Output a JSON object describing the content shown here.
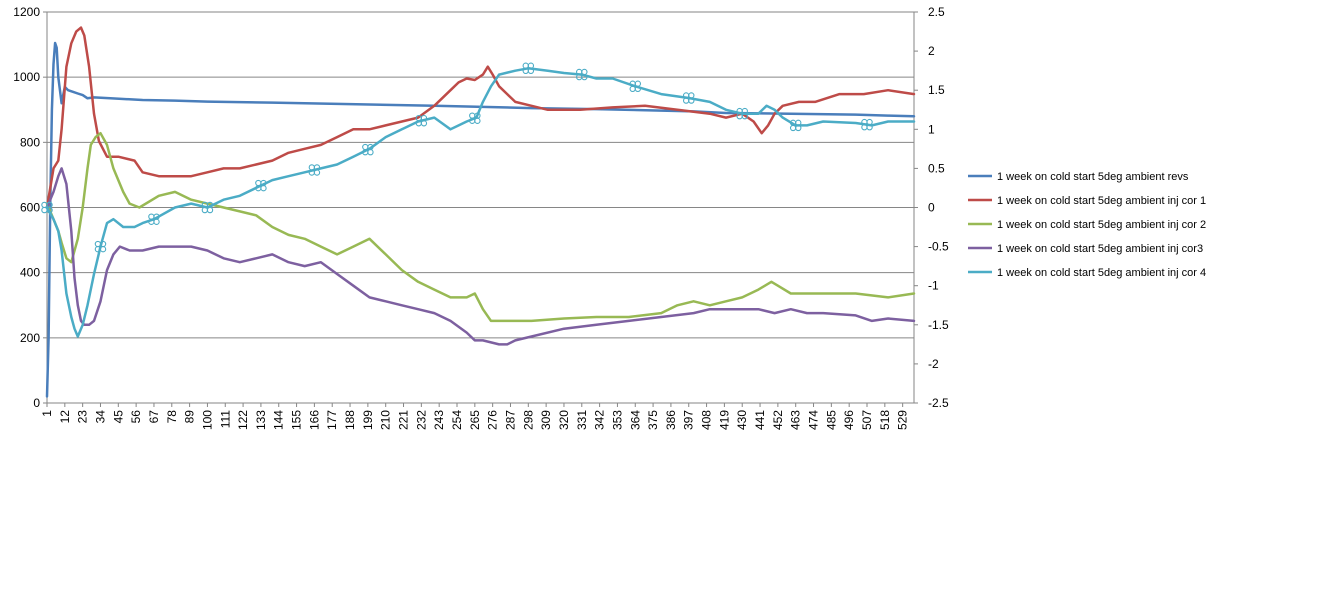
{
  "chart_data": {
    "type": "line",
    "title": "",
    "xlabel": "",
    "ylabel": "",
    "y2label": "",
    "grid": true,
    "legend_position": "right",
    "ylim": [
      0,
      1200
    ],
    "y_ticks": [
      "0",
      "200",
      "400",
      "600",
      "800",
      "1000",
      "1200"
    ],
    "y2lim": [
      -2.5,
      2.5
    ],
    "y2_ticks": [
      "-2.5",
      "-2",
      "-1.5",
      "-1",
      "-0.5",
      "0",
      "0.5",
      "1",
      "1.5",
      "2",
      "2.5"
    ],
    "xlim": [
      1,
      536
    ],
    "x_ticks": [
      "1",
      "12",
      "23",
      "34",
      "45",
      "56",
      "67",
      "78",
      "89",
      "100",
      "111",
      "122",
      "133",
      "144",
      "155",
      "166",
      "177",
      "188",
      "199",
      "210",
      "221",
      "232",
      "243",
      "254",
      "265",
      "276",
      "287",
      "298",
      "309",
      "320",
      "331",
      "342",
      "353",
      "364",
      "375",
      "386",
      "397",
      "408",
      "419",
      "430",
      "441",
      "452",
      "463",
      "474",
      "485",
      "496",
      "507",
      "518",
      "529"
    ],
    "series": [
      {
        "name": "1 week on  cold start  5deg ambient  revs",
        "axis": "left",
        "color": "#4a7ebb",
        "markers": false,
        "x": [
          1,
          2,
          3,
          4,
          5,
          6,
          7,
          8,
          10,
          12,
          14,
          17,
          20,
          23,
          26,
          30,
          40,
          60,
          80,
          100,
          140,
          180,
          240,
          260,
          300,
          340,
          400,
          420,
          460,
          500,
          520,
          536
        ],
        "y": [
          20,
          200,
          600,
          900,
          1040,
          1105,
          1090,
          1000,
          920,
          970,
          960,
          955,
          950,
          945,
          935,
          938,
          935,
          930,
          928,
          925,
          922,
          918,
          912,
          910,
          905,
          902,
          895,
          890,
          888,
          885,
          882,
          880
        ]
      },
      {
        "name": "1 week on  cold start  5deg ambient  inj cor 1",
        "axis": "right",
        "color": "#be4b48",
        "markers": false,
        "x": [
          1,
          5,
          8,
          10,
          13,
          16,
          19,
          22,
          24,
          27,
          30,
          33,
          38,
          45,
          55,
          60,
          70,
          80,
          90,
          100,
          110,
          120,
          130,
          140,
          150,
          160,
          170,
          180,
          190,
          200,
          210,
          220,
          230,
          240,
          250,
          255,
          260,
          265,
          270,
          273,
          276,
          280,
          285,
          290,
          300,
          310,
          330,
          350,
          370,
          390,
          410,
          420,
          430,
          437,
          442,
          446,
          450,
          455,
          465,
          475,
          490,
          505,
          520,
          536
        ],
        "y": [
          0,
          0.5,
          0.6,
          1.0,
          1.8,
          2.1,
          2.25,
          2.3,
          2.2,
          1.8,
          1.2,
          0.85,
          0.65,
          0.65,
          0.6,
          0.45,
          0.4,
          0.4,
          0.4,
          0.45,
          0.5,
          0.5,
          0.55,
          0.6,
          0.7,
          0.75,
          0.8,
          0.9,
          1.0,
          1.0,
          1.05,
          1.1,
          1.15,
          1.3,
          1.5,
          1.6,
          1.65,
          1.63,
          1.7,
          1.8,
          1.7,
          1.55,
          1.45,
          1.35,
          1.3,
          1.25,
          1.25,
          1.28,
          1.3,
          1.25,
          1.2,
          1.15,
          1.2,
          1.1,
          0.95,
          1.05,
          1.2,
          1.3,
          1.35,
          1.35,
          1.45,
          1.45,
          1.5,
          1.45
        ]
      },
      {
        "name": "1 week on  cold start  5deg ambient  inj cor 2",
        "axis": "right",
        "color": "#98b954",
        "markers": false,
        "x": [
          1,
          5,
          8,
          10,
          13,
          16,
          20,
          23,
          26,
          28,
          31,
          34,
          38,
          42,
          48,
          52,
          58,
          70,
          80,
          90,
          100,
          110,
          120,
          130,
          140,
          150,
          160,
          170,
          180,
          190,
          200,
          210,
          220,
          230,
          240,
          250,
          260,
          265,
          270,
          275,
          280,
          290,
          300,
          320,
          340,
          360,
          380,
          390,
          400,
          410,
          420,
          430,
          440,
          448,
          452,
          460,
          480,
          500,
          520,
          536
        ],
        "y": [
          0.05,
          -0.15,
          -0.3,
          -0.45,
          -0.65,
          -0.7,
          -0.4,
          0.0,
          0.5,
          0.8,
          0.9,
          0.95,
          0.8,
          0.5,
          0.2,
          0.05,
          0.0,
          0.15,
          0.2,
          0.1,
          0.05,
          0.0,
          -0.05,
          -0.1,
          -0.25,
          -0.35,
          -0.4,
          -0.5,
          -0.6,
          -0.5,
          -0.4,
          -0.6,
          -0.8,
          -0.95,
          -1.05,
          -1.15,
          -1.15,
          -1.1,
          -1.3,
          -1.45,
          -1.45,
          -1.45,
          -1.45,
          -1.42,
          -1.4,
          -1.4,
          -1.35,
          -1.25,
          -1.2,
          -1.25,
          -1.2,
          -1.15,
          -1.05,
          -0.95,
          -1.0,
          -1.1,
          -1.1,
          -1.1,
          -1.15,
          -1.1
        ]
      },
      {
        "name": "1 week on  cold start  5deg ambient  inj cor3",
        "axis": "right",
        "color": "#7d60a0",
        "markers": false,
        "x": [
          1,
          5,
          8,
          10,
          13,
          16,
          18,
          20,
          22,
          24,
          27,
          30,
          34,
          38,
          42,
          46,
          52,
          60,
          70,
          80,
          90,
          100,
          110,
          120,
          130,
          140,
          150,
          160,
          170,
          180,
          190,
          200,
          210,
          220,
          230,
          240,
          250,
          260,
          265,
          270,
          280,
          285,
          290,
          300,
          320,
          340,
          360,
          380,
          400,
          410,
          420,
          430,
          440,
          450,
          460,
          470,
          480,
          500,
          510,
          520,
          536
        ],
        "y": [
          0,
          0.2,
          0.4,
          0.5,
          0.3,
          -0.3,
          -0.9,
          -1.25,
          -1.45,
          -1.5,
          -1.5,
          -1.45,
          -1.2,
          -0.8,
          -0.6,
          -0.5,
          -0.55,
          -0.55,
          -0.5,
          -0.5,
          -0.5,
          -0.55,
          -0.65,
          -0.7,
          -0.65,
          -0.6,
          -0.7,
          -0.75,
          -0.7,
          -0.85,
          -1.0,
          -1.15,
          -1.2,
          -1.25,
          -1.3,
          -1.35,
          -1.45,
          -1.6,
          -1.7,
          -1.7,
          -1.75,
          -1.75,
          -1.7,
          -1.65,
          -1.55,
          -1.5,
          -1.45,
          -1.4,
          -1.35,
          -1.3,
          -1.3,
          -1.3,
          -1.3,
          -1.35,
          -1.3,
          -1.35,
          -1.35,
          -1.38,
          -1.45,
          -1.42,
          -1.45
        ]
      },
      {
        "name": "1 week on  cold start  5deg ambient  inj cor 4",
        "axis": "right",
        "color": "#4bacc6",
        "markers": true,
        "marker_x": [
          1,
          34,
          67,
          100,
          133,
          166,
          199,
          232,
          265,
          298,
          331,
          364,
          397,
          430,
          463,
          507
        ],
        "x": [
          1,
          5,
          8,
          10,
          13,
          16,
          18,
          20,
          23,
          26,
          30,
          34,
          38,
          42,
          48,
          55,
          60,
          67,
          80,
          90,
          100,
          110,
          120,
          130,
          140,
          150,
          160,
          170,
          180,
          190,
          200,
          210,
          220,
          230,
          240,
          250,
          260,
          266,
          270,
          275,
          280,
          290,
          298,
          310,
          320,
          331,
          340,
          350,
          364,
          380,
          397,
          410,
          420,
          430,
          440,
          445,
          450,
          455,
          463,
          470,
          480,
          500,
          510,
          520,
          536
        ],
        "y": [
          0.0,
          -0.15,
          -0.3,
          -0.55,
          -1.1,
          -1.4,
          -1.55,
          -1.65,
          -1.5,
          -1.25,
          -0.85,
          -0.5,
          -0.2,
          -0.15,
          -0.25,
          -0.25,
          -0.2,
          -0.15,
          0.0,
          0.05,
          0.0,
          0.1,
          0.15,
          0.25,
          0.35,
          0.4,
          0.45,
          0.5,
          0.55,
          0.65,
          0.75,
          0.9,
          1.0,
          1.1,
          1.15,
          1.0,
          1.1,
          1.15,
          1.35,
          1.55,
          1.7,
          1.75,
          1.78,
          1.75,
          1.72,
          1.7,
          1.65,
          1.65,
          1.55,
          1.45,
          1.4,
          1.35,
          1.25,
          1.2,
          1.2,
          1.3,
          1.25,
          1.15,
          1.05,
          1.05,
          1.1,
          1.08,
          1.05,
          1.1,
          1.1
        ]
      }
    ]
  }
}
